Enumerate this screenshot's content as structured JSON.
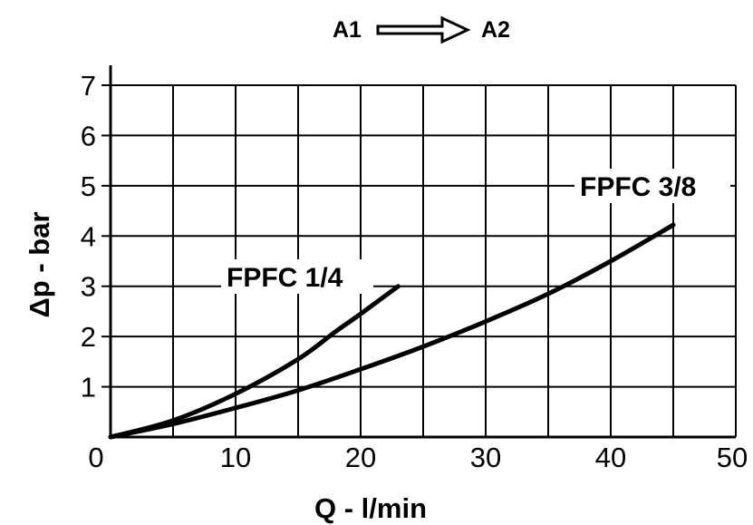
{
  "flow": {
    "from": "A1",
    "to": "A2"
  },
  "chart_data": {
    "type": "line",
    "title": "",
    "xlabel": "Q - l/min",
    "ylabel": "Δp - bar",
    "xlim": [
      0,
      50
    ],
    "ylim": [
      0,
      7
    ],
    "xticks": [
      "0",
      "10",
      "20",
      "30",
      "40",
      "50"
    ],
    "yticks": [
      "1",
      "2",
      "3",
      "4",
      "5",
      "6",
      "7"
    ],
    "grid": true,
    "series": [
      {
        "name": "FPFC 1/4",
        "x": [
          0,
          5,
          10,
          15,
          18,
          20,
          23
        ],
        "y": [
          0,
          0.33,
          0.86,
          1.55,
          2.1,
          2.45,
          3.0
        ]
      },
      {
        "name": "FPFC 3/8",
        "x": [
          0,
          5,
          10,
          15,
          20,
          25,
          30,
          35,
          40,
          45
        ],
        "y": [
          0,
          0.26,
          0.58,
          0.93,
          1.35,
          1.8,
          2.3,
          2.85,
          3.5,
          4.22
        ]
      }
    ]
  }
}
